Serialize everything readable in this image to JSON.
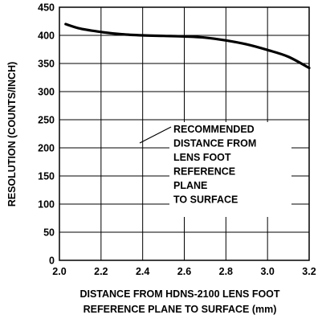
{
  "chart_data": {
    "type": "line",
    "title": "",
    "xlabel_lines": [
      "DISTANCE FROM HDNS-2100 LENS FOOT",
      "REFERENCE PLANE TO SURFACE (mm)"
    ],
    "ylabel": "RESOLUTION (COUNTS/INCH)",
    "xlim": [
      2.0,
      3.2
    ],
    "ylim": [
      0,
      450
    ],
    "xticks": [
      "2.0",
      "2.2",
      "2.4",
      "2.6",
      "2.8",
      "3.0",
      "3.2"
    ],
    "yticks": [
      "0",
      "50",
      "100",
      "150",
      "200",
      "250",
      "300",
      "350",
      "400",
      "450"
    ],
    "grid": true,
    "series": [
      {
        "x": [
          2.03,
          2.1,
          2.2,
          2.3,
          2.4,
          2.5,
          2.6,
          2.7,
          2.8,
          2.9,
          3.0,
          3.1,
          3.2
        ],
        "y": [
          420,
          412,
          406,
          402,
          400,
          399,
          398,
          396,
          391,
          384,
          374,
          362,
          342
        ]
      }
    ],
    "annotation": {
      "lines": [
        "RECOMMENDED",
        "DISTANCE FROM",
        "LENS FOOT",
        "REFERENCE",
        "PLANE",
        "TO SURFACE"
      ]
    },
    "colors": {
      "line": "#000000",
      "grid": "#000000",
      "background": "#ffffff"
    }
  }
}
